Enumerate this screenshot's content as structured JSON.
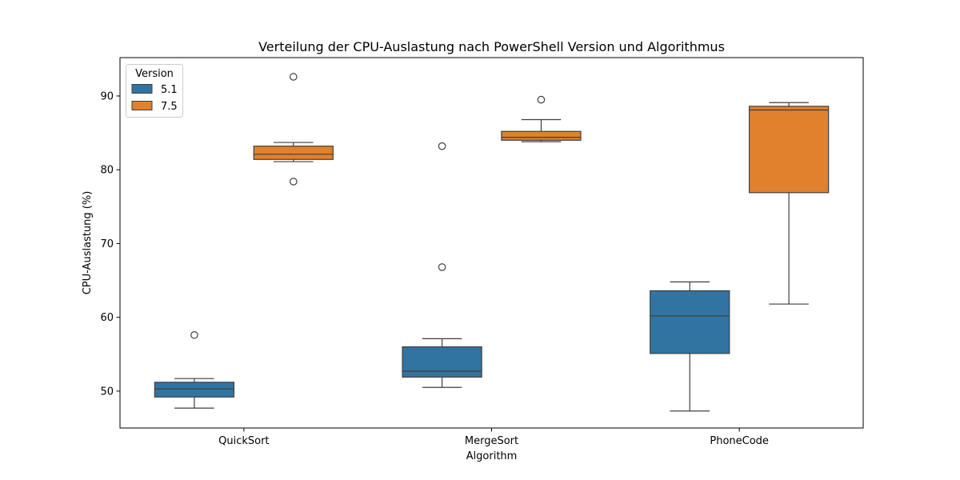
{
  "chart_data": {
    "type": "boxplot",
    "title": "Verteilung der CPU-Auslastung nach PowerShell Version und Algorithmus",
    "xlabel": "Algorithm",
    "ylabel": "CPU-Auslastung (%)",
    "ylim": [
      45.0,
      95.2
    ],
    "yticks": [
      50,
      60,
      70,
      80,
      90
    ],
    "categories": [
      "QuickSort",
      "MergeSort",
      "PhoneCode"
    ],
    "legend": {
      "title": "Version",
      "position": "top-left"
    },
    "series": [
      {
        "name": "5.1",
        "color": "#3274a1",
        "boxes": [
          {
            "category": "QuickSort",
            "whisker_low": 47.7,
            "q1": 49.2,
            "median": 50.3,
            "q3": 51.2,
            "whisker_high": 51.7,
            "outliers": [
              57.6
            ]
          },
          {
            "category": "MergeSort",
            "whisker_low": 50.5,
            "q1": 51.9,
            "median": 52.7,
            "q3": 56.0,
            "whisker_high": 57.1,
            "outliers": [
              66.8,
              83.2
            ]
          },
          {
            "category": "PhoneCode",
            "whisker_low": 47.3,
            "q1": 55.1,
            "median": 60.2,
            "q3": 63.6,
            "whisker_high": 64.8,
            "outliers": []
          }
        ]
      },
      {
        "name": "7.5",
        "color": "#e1812c",
        "boxes": [
          {
            "category": "QuickSort",
            "whisker_low": 81.1,
            "q1": 81.4,
            "median": 82.1,
            "q3": 83.2,
            "whisker_high": 83.7,
            "outliers": [
              92.6,
              78.4
            ]
          },
          {
            "category": "MergeSort",
            "whisker_low": 83.8,
            "q1": 84.0,
            "median": 84.4,
            "q3": 85.2,
            "whisker_high": 86.8,
            "outliers": [
              89.5
            ]
          },
          {
            "category": "PhoneCode",
            "whisker_low": 61.8,
            "q1": 76.9,
            "median": 88.1,
            "q3": 88.6,
            "whisker_high": 89.1,
            "outliers": []
          }
        ]
      }
    ]
  }
}
